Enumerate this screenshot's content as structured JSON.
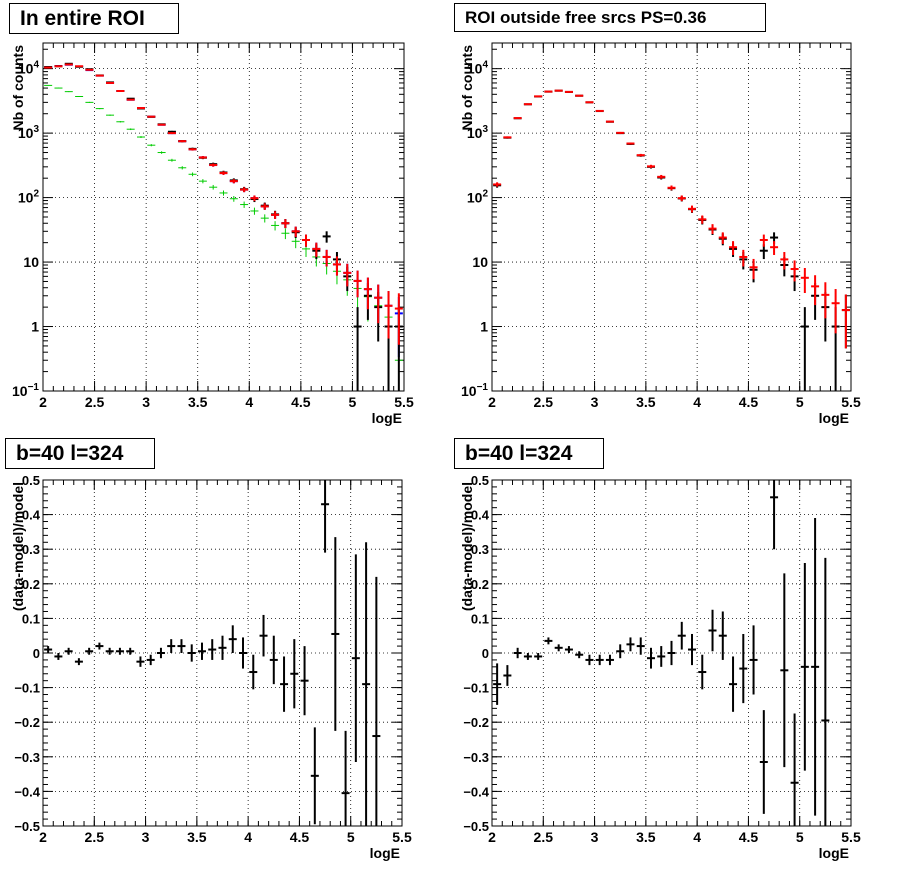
{
  "chart_data": [
    {
      "type": "scatter",
      "title": "In entire ROI",
      "xlabel": "logE",
      "ylabel": "Nb of counts",
      "xlim": [
        2,
        5.5
      ],
      "ylim": [
        0.1,
        25000
      ],
      "log_y": true,
      "grid": true,
      "x_ticks": [
        "2",
        "2.5",
        "3",
        "3.5",
        "4",
        "4.5",
        "5",
        "5.5"
      ],
      "y_ticks": [
        {
          "v": 0.1,
          "b": "10",
          "e": "−1"
        },
        {
          "v": 1,
          "b": "1",
          "e": ""
        },
        {
          "v": 10,
          "b": "10",
          "e": ""
        },
        {
          "v": 100,
          "b": "10",
          "e": "2"
        },
        {
          "v": 1000,
          "b": "10",
          "e": "3"
        },
        {
          "v": 10000,
          "b": "10",
          "e": "4"
        }
      ],
      "series": [
        {
          "color": "#00cc00",
          "x": [
            2.05,
            2.15,
            2.25,
            2.35,
            2.45,
            2.55,
            2.65,
            2.75,
            2.85,
            2.95,
            3.05,
            3.15,
            3.25,
            3.35,
            3.45,
            3.55,
            3.65,
            3.75,
            3.85,
            3.95,
            4.05,
            4.15,
            4.25,
            4.35,
            4.45,
            4.55,
            4.65,
            4.75,
            4.85,
            4.95,
            5.05,
            5.15,
            5.25,
            5.35,
            5.45
          ],
          "y": [
            5500,
            5000,
            4400,
            3700,
            3000,
            2400,
            1900,
            1500,
            1150,
            870,
            650,
            500,
            380,
            290,
            230,
            180,
            145,
            118,
            96,
            78,
            62,
            48,
            37,
            28,
            21,
            16,
            12,
            9.5,
            7.2,
            5.3,
            3.9,
            2.9,
            2.1,
            1.4,
            0.3
          ]
        },
        {
          "color": "#0000ff",
          "x": [
            2.05,
            2.15,
            2.25,
            2.35,
            2.45,
            2.55,
            2.65,
            2.75,
            2.85,
            2.95,
            3.05,
            3.15,
            3.25,
            3.35,
            3.45,
            3.55,
            3.65,
            3.75,
            3.85,
            3.95,
            4.05,
            4.15,
            4.25,
            4.35,
            4.45,
            4.55,
            4.65,
            4.75,
            4.85,
            4.95,
            5.05,
            5.15,
            5.25,
            5.35,
            5.45
          ],
          "y": [
            10500,
            11000,
            11500,
            10800,
            9500,
            7800,
            6000,
            4500,
            3300,
            2450,
            1800,
            1350,
            1000,
            750,
            560,
            420,
            320,
            240,
            180,
            133,
            98,
            73,
            54,
            40,
            30,
            22,
            16,
            12,
            9.2,
            6.8,
            5.1,
            3.8,
            2.8,
            2.1,
            1.6
          ]
        },
        {
          "color": "#000000",
          "x": [
            2.05,
            2.15,
            2.25,
            2.35,
            2.45,
            2.55,
            2.65,
            2.75,
            2.85,
            2.95,
            3.05,
            3.15,
            3.25,
            3.35,
            3.45,
            3.55,
            3.65,
            3.75,
            3.85,
            3.95,
            4.05,
            4.15,
            4.25,
            4.35,
            4.45,
            4.55,
            4.65,
            4.75,
            4.85,
            4.95,
            5.05,
            5.15,
            5.25,
            5.35,
            5.45
          ],
          "y": [
            10600,
            10900,
            11900,
            10700,
            9800,
            7850,
            6120,
            4500,
            3420,
            2410,
            1790,
            1370,
            1050,
            750,
            570,
            415,
            330,
            245,
            185,
            135,
            95,
            75,
            55,
            40,
            29,
            22,
            15,
            25,
            11,
            6,
            1,
            3,
            2,
            1,
            1
          ]
        },
        {
          "color": "#ff0000",
          "x": [
            2.05,
            2.15,
            2.25,
            2.35,
            2.45,
            2.55,
            2.65,
            2.75,
            2.85,
            2.95,
            3.05,
            3.15,
            3.25,
            3.35,
            3.45,
            3.55,
            3.65,
            3.75,
            3.85,
            3.95,
            4.05,
            4.15,
            4.25,
            4.35,
            4.45,
            4.55,
            4.65,
            4.75,
            4.85,
            4.95,
            5.05,
            5.15,
            5.25,
            5.35,
            5.45
          ],
          "y": [
            10400,
            10900,
            11600,
            10900,
            9600,
            7800,
            6000,
            4500,
            3300,
            2450,
            1800,
            1350,
            1000,
            750,
            560,
            420,
            320,
            240,
            180,
            133,
            98,
            73,
            54,
            40,
            30,
            22,
            16,
            12,
            9.2,
            6.8,
            5.1,
            3.8,
            2.8,
            2.1,
            1.9
          ]
        }
      ]
    },
    {
      "type": "scatter",
      "title": "ROI outside free srcs PS=0.36",
      "xlabel": "logE",
      "ylabel": "Nb of counts",
      "xlim": [
        2,
        5.5
      ],
      "ylim": [
        0.1,
        25000
      ],
      "log_y": true,
      "grid": true,
      "x_ticks": [
        "2",
        "2.5",
        "3",
        "3.5",
        "4",
        "4.5",
        "5",
        "5.5"
      ],
      "y_ticks": [
        {
          "v": 0.1,
          "b": "10",
          "e": "−1"
        },
        {
          "v": 1,
          "b": "1",
          "e": ""
        },
        {
          "v": 10,
          "b": "10",
          "e": ""
        },
        {
          "v": 100,
          "b": "10",
          "e": "2"
        },
        {
          "v": 1000,
          "b": "10",
          "e": "3"
        },
        {
          "v": 10000,
          "b": "10",
          "e": "4"
        }
      ],
      "series": [
        {
          "color": "#000000",
          "x": [
            2.05,
            2.15,
            2.25,
            2.35,
            2.45,
            2.55,
            2.65,
            2.75,
            2.85,
            2.95,
            3.05,
            3.15,
            3.25,
            3.35,
            3.45,
            3.55,
            3.65,
            3.75,
            3.85,
            3.95,
            4.05,
            4.15,
            4.25,
            4.35,
            4.45,
            4.55,
            4.65,
            4.75,
            4.85,
            4.95,
            5.05,
            5.15,
            5.25,
            5.35,
            5.45
          ],
          "y": [
            155,
            850,
            1700,
            2800,
            3700,
            4400,
            4550,
            4350,
            3800,
            3000,
            2200,
            1500,
            1000,
            680,
            450,
            300,
            205,
            140,
            97,
            66,
            45,
            32,
            23,
            16,
            11,
            7.6,
            15,
            24,
            9,
            6,
            1,
            3,
            2,
            1,
            1.8
          ]
        },
        {
          "color": "#ff0000",
          "x": [
            2.05,
            2.15,
            2.25,
            2.35,
            2.45,
            2.55,
            2.65,
            2.75,
            2.85,
            2.95,
            3.05,
            3.15,
            3.25,
            3.35,
            3.45,
            3.55,
            3.65,
            3.75,
            3.85,
            3.95,
            4.05,
            4.15,
            4.25,
            4.35,
            4.45,
            4.55,
            4.65,
            4.75,
            4.85,
            4.95,
            5.05,
            5.15,
            5.25,
            5.35,
            5.45
          ],
          "y": [
            160,
            860,
            1710,
            2810,
            3720,
            4410,
            4560,
            4360,
            3810,
            3010,
            2210,
            1510,
            1010,
            690,
            455,
            305,
            210,
            142,
            98,
            67,
            46,
            33,
            24,
            17,
            12,
            8.3,
            22,
            17,
            11,
            7.8,
            5.7,
            4.2,
            3.1,
            2.3,
            1.8
          ]
        }
      ]
    },
    {
      "type": "scatter",
      "title": "b=40 l=324",
      "xlabel": "logE",
      "ylabel": "(data-model)/model",
      "xlim": [
        2,
        5.5
      ],
      "ylim": [
        -0.5,
        0.5
      ],
      "log_y": false,
      "grid": true,
      "x_ticks": [
        "2",
        "2.5",
        "3",
        "3.5",
        "4",
        "4.5",
        "5",
        "5.5"
      ],
      "y_ticks": [
        "−0.5",
        "−0.4",
        "−0.3",
        "−0.2",
        "−0.1",
        "0",
        "0.1",
        "0.2",
        "0.3",
        "0.4",
        "0.5"
      ],
      "series": [
        {
          "color": "#000000",
          "x": [
            2.05,
            2.15,
            2.25,
            2.35,
            2.45,
            2.55,
            2.65,
            2.75,
            2.85,
            2.95,
            3.05,
            3.15,
            3.25,
            3.35,
            3.45,
            3.55,
            3.65,
            3.75,
            3.85,
            3.95,
            4.05,
            4.15,
            4.25,
            4.35,
            4.45,
            4.55,
            4.65,
            4.75,
            4.85,
            4.95,
            5.05,
            5.15,
            5.25
          ],
          "y": [
            0.01,
            -0.01,
            0.005,
            -0.025,
            0.005,
            0.02,
            0.005,
            0.005,
            0.005,
            -0.025,
            -0.02,
            0.0,
            0.02,
            0.02,
            0.0,
            0.005,
            0.01,
            0.015,
            0.04,
            0.0,
            -0.055,
            0.05,
            -0.02,
            -0.09,
            -0.06,
            -0.08,
            -0.355,
            0.43,
            0.055,
            -0.405,
            -0.015,
            -0.09,
            -0.24
          ],
          "err": [
            0.01,
            0.01,
            0.01,
            0.01,
            0.01,
            0.01,
            0.01,
            0.01,
            0.01,
            0.015,
            0.015,
            0.015,
            0.02,
            0.02,
            0.025,
            0.025,
            0.03,
            0.035,
            0.04,
            0.045,
            0.05,
            0.06,
            0.07,
            0.08,
            0.1,
            0.1,
            0.14,
            0.14,
            0.28,
            0.18,
            0.3,
            0.41,
            0.46
          ]
        }
      ]
    },
    {
      "type": "scatter",
      "title": "b=40 l=324",
      "xlabel": "logE",
      "ylabel": "(data-model)/model",
      "xlim": [
        2,
        5.5
      ],
      "ylim": [
        -0.5,
        0.5
      ],
      "log_y": false,
      "grid": true,
      "x_ticks": [
        "2",
        "2.5",
        "3",
        "3.5",
        "4",
        "4.5",
        "5",
        "5.5"
      ],
      "y_ticks": [
        "−0.5",
        "−0.4",
        "−0.3",
        "−0.2",
        "−0.1",
        "0",
        "0.1",
        "0.2",
        "0.3",
        "0.4",
        "0.5"
      ],
      "series": [
        {
          "color": "#000000",
          "x": [
            2.05,
            2.15,
            2.25,
            2.35,
            2.45,
            2.55,
            2.65,
            2.75,
            2.85,
            2.95,
            3.05,
            3.15,
            3.25,
            3.35,
            3.45,
            3.55,
            3.65,
            3.75,
            3.85,
            3.95,
            4.05,
            4.15,
            4.25,
            4.35,
            4.45,
            4.55,
            4.65,
            4.75,
            4.85,
            4.95,
            5.05,
            5.15,
            5.25
          ],
          "y": [
            -0.09,
            -0.065,
            0.0,
            -0.01,
            -0.01,
            0.035,
            0.015,
            0.01,
            -0.005,
            -0.02,
            -0.02,
            -0.02,
            0.005,
            0.025,
            0.02,
            -0.015,
            -0.01,
            0.0,
            0.05,
            0.01,
            -0.055,
            0.065,
            0.05,
            -0.09,
            -0.045,
            -0.02,
            -0.315,
            0.45,
            -0.05,
            -0.375,
            -0.04,
            -0.04,
            -0.195
          ],
          "err": [
            0.06,
            0.03,
            0.015,
            0.01,
            0.01,
            0.01,
            0.01,
            0.01,
            0.01,
            0.015,
            0.015,
            0.015,
            0.02,
            0.02,
            0.025,
            0.03,
            0.03,
            0.035,
            0.04,
            0.045,
            0.05,
            0.06,
            0.07,
            0.08,
            0.1,
            0.1,
            0.15,
            0.15,
            0.28,
            0.2,
            0.3,
            0.43,
            0.47
          ]
        }
      ]
    }
  ]
}
